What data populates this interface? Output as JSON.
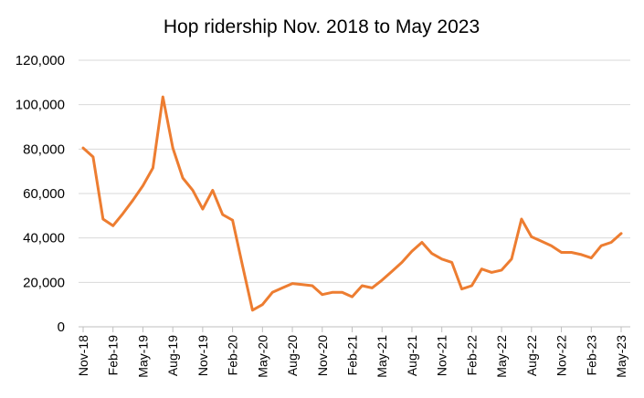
{
  "chart_data": {
    "type": "line",
    "title": "Hop ridership Nov. 2018 to May 2023",
    "xlabel": "",
    "ylabel": "",
    "ylim": [
      0,
      120000
    ],
    "yticks": [
      0,
      20000,
      40000,
      60000,
      80000,
      100000,
      120000
    ],
    "ytick_labels": [
      "0",
      "20,000",
      "40,000",
      "60,000",
      "80,000",
      "100,000",
      "120,000"
    ],
    "x": [
      "Nov-18",
      "Dec-18",
      "Jan-19",
      "Feb-19",
      "Mar-19",
      "Apr-19",
      "May-19",
      "Jun-19",
      "Jul-19",
      "Aug-19",
      "Sep-19",
      "Oct-19",
      "Nov-19",
      "Dec-19",
      "Jan-20",
      "Feb-20",
      "Mar-20",
      "Apr-20",
      "May-20",
      "Jun-20",
      "Jul-20",
      "Aug-20",
      "Sep-20",
      "Oct-20",
      "Nov-20",
      "Dec-20",
      "Jan-21",
      "Feb-21",
      "Mar-21",
      "Apr-21",
      "May-21",
      "Jun-21",
      "Jul-21",
      "Aug-21",
      "Sep-21",
      "Oct-21",
      "Nov-21",
      "Dec-21",
      "Jan-22",
      "Feb-22",
      "Mar-22",
      "Apr-22",
      "May-22",
      "Jun-22",
      "Jul-22",
      "Aug-22",
      "Sep-22",
      "Oct-22",
      "Nov-22",
      "Dec-22",
      "Jan-23",
      "Feb-23",
      "Mar-23",
      "Apr-23",
      "May-23"
    ],
    "xtick_labels": [
      "Nov-18",
      "Feb-19",
      "May-19",
      "Aug-19",
      "Nov-19",
      "Feb-20",
      "May-20",
      "Aug-20",
      "Nov-20",
      "Feb-21",
      "May-21",
      "Aug-21",
      "Nov-21",
      "Feb-22",
      "May-22",
      "Aug-22",
      "Nov-22",
      "Feb-23",
      "May-23"
    ],
    "series": [
      {
        "name": "",
        "color": "#ED7D31",
        "values": [
          80500,
          76500,
          48500,
          45500,
          51000,
          57000,
          63500,
          71500,
          103500,
          80500,
          67000,
          61500,
          53000,
          61500,
          50500,
          48000,
          27500,
          7500,
          10000,
          15500,
          17500,
          19500,
          19000,
          18500,
          14500,
          15500,
          15500,
          13500,
          18500,
          17500,
          21000,
          25000,
          29000,
          34000,
          38000,
          33000,
          30500,
          29000,
          17000,
          18500,
          26000,
          24500,
          25500,
          30500,
          48500,
          40500,
          38500,
          36500,
          33500,
          33500,
          32500,
          31000,
          36500,
          38000,
          42000
        ]
      }
    ],
    "grid": true,
    "legend": "none"
  }
}
